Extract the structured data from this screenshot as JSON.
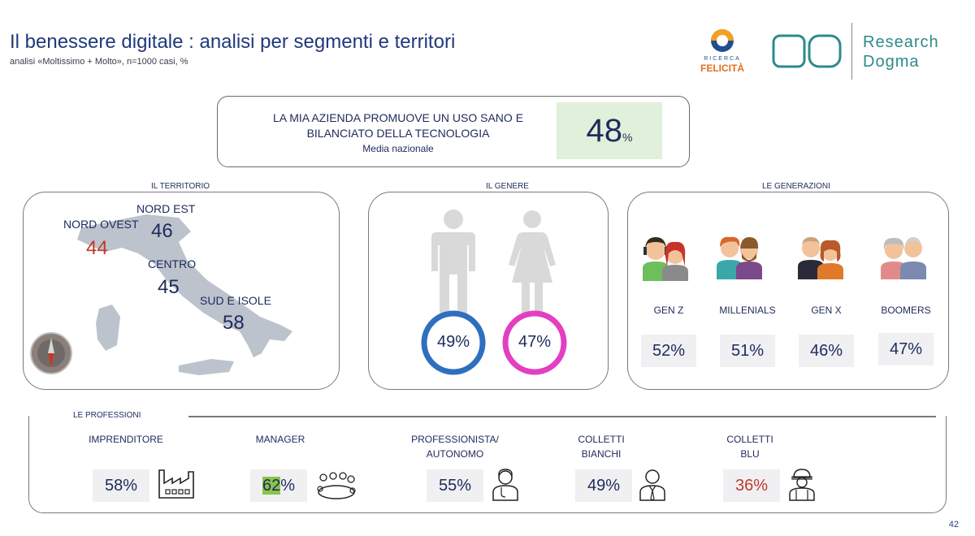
{
  "header": {
    "title": "Il benessere digitale :  analisi per segmenti e territori",
    "subtitle": "analisi «Moltissimo + Molto», n=1000 casi, %",
    "page_number": "42"
  },
  "logos": {
    "felicita_top": "RICERCA",
    "felicita_bottom": "FELICITÀ",
    "rd": "RD",
    "research": "Research",
    "dogma": "Dogma"
  },
  "highlight": {
    "text": "LA MIA AZIENDA PROMUOVE UN USO SANO E BILANCIATO DELLA TECNOLOGIA",
    "sub": "Media nazionale",
    "value": "48",
    "unit": "%"
  },
  "territorio": {
    "label": "IL TERRITORIO",
    "regions": [
      {
        "name": "NORD OVEST",
        "value": "44",
        "color": "#c0392b"
      },
      {
        "name": "NORD EST",
        "value": "46",
        "color": "#1e2a5c"
      },
      {
        "name": "CENTRO",
        "value": "45",
        "color": "#1e2a5c"
      },
      {
        "name": "SUD E ISOLE",
        "value": "58",
        "color": "#1e2a5c"
      }
    ]
  },
  "genere": {
    "label": "IL GENERE",
    "male": {
      "value": "49%",
      "color": "#2e6fbf"
    },
    "female": {
      "value": "47%",
      "color": "#e23fc1"
    }
  },
  "generazioni": {
    "label": "LE GENERAZIONI",
    "items": [
      {
        "name": "GEN Z",
        "value": "52%",
        "icon": "gen-z-icon"
      },
      {
        "name": "MILLENIALS",
        "value": "51%",
        "icon": "millenials-icon"
      },
      {
        "name": "GEN X",
        "value": "46%",
        "icon": "gen-x-icon"
      },
      {
        "name": "BOOMERS",
        "value": "47%",
        "icon": "boomers-icon"
      }
    ]
  },
  "professioni": {
    "label": "LE PROFESSIONI",
    "items": [
      {
        "name": "IMPRENDITORE",
        "name2": "",
        "value": "58%",
        "icon": "factory-icon"
      },
      {
        "name": "MANAGER",
        "name2": "",
        "value_hl": "62",
        "value_rest": "%",
        "icon": "meeting-icon"
      },
      {
        "name": "PROFESSIONISTA/",
        "name2": "AUTONOMO",
        "value": "55%",
        "icon": "doctor-icon"
      },
      {
        "name": "COLLETTI",
        "name2": "BIANCHI",
        "value": "49%",
        "icon": "white-collar-icon"
      },
      {
        "name": "COLLETTI",
        "name2": "BLU",
        "value": "36%",
        "icon": "worker-icon"
      }
    ]
  }
}
